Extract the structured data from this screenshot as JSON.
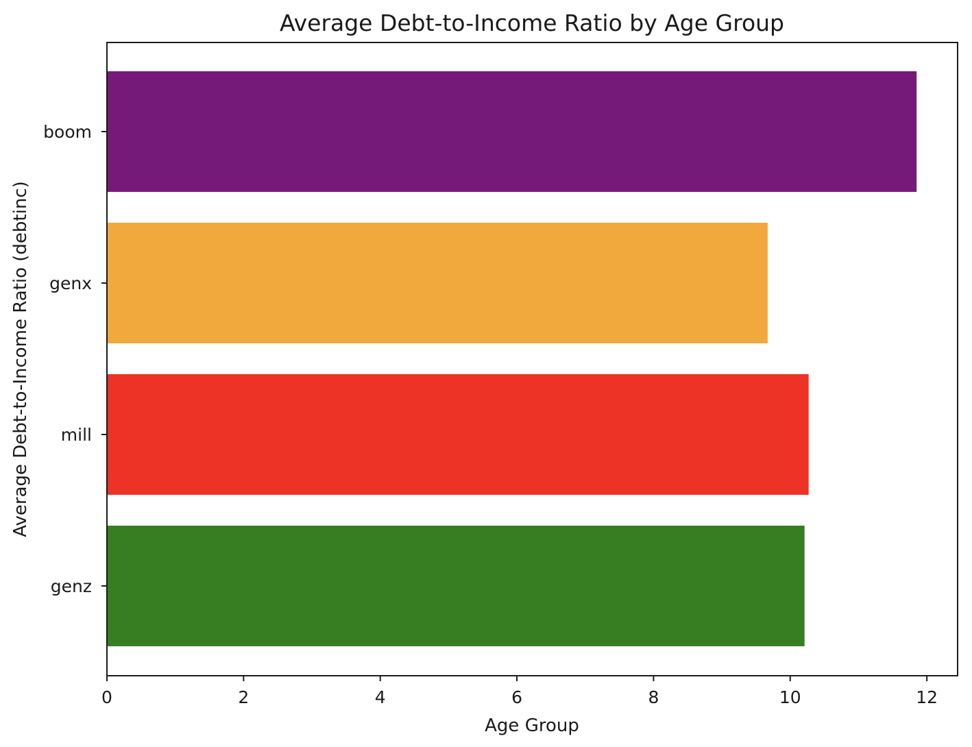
{
  "chart_data": {
    "type": "bar",
    "orientation": "horizontal",
    "title": "Average Debt-to-Income Ratio by Age Group",
    "xlabel": "Age Group",
    "ylabel": "Average Debt-to-Income Ratio (debtinc)",
    "categories": [
      "boom",
      "genx",
      "mill",
      "genz"
    ],
    "values": [
      11.85,
      9.67,
      10.27,
      10.21
    ],
    "colors": [
      "#751a78",
      "#f1a83c",
      "#ec3325",
      "#377e22"
    ],
    "xlim": [
      0,
      12.45
    ],
    "xticks": [
      "0",
      "2",
      "4",
      "6",
      "8",
      "10",
      "12"
    ],
    "grid": false
  }
}
